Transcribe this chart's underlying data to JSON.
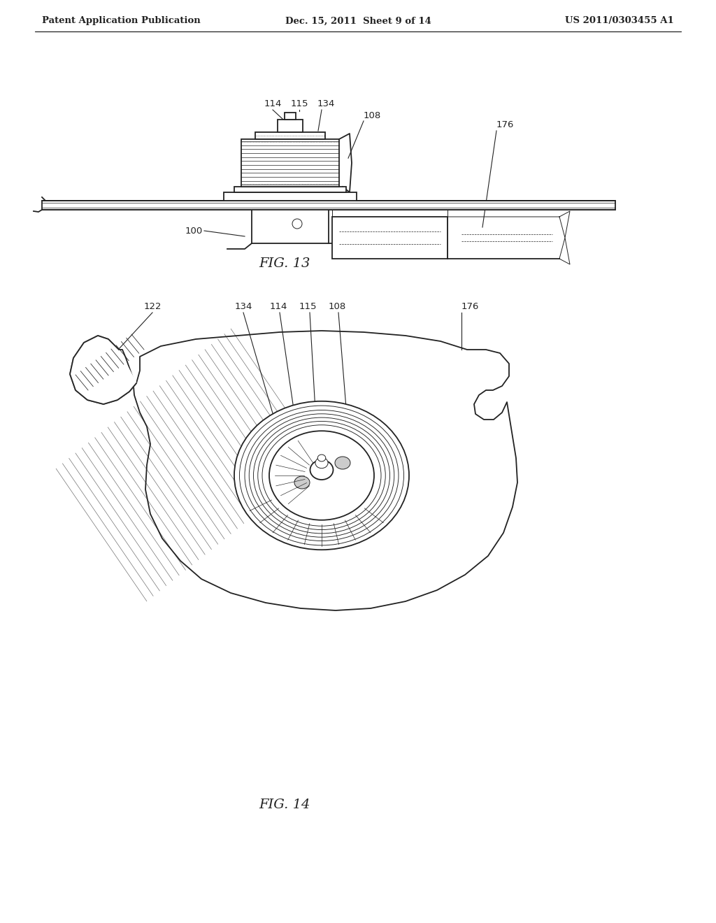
{
  "bg_color": "#ffffff",
  "line_color": "#222222",
  "header_left": "Patent Application Publication",
  "header_center": "Dec. 15, 2011  Sheet 9 of 14",
  "header_right": "US 2011/0303455 A1",
  "fig13_label": "FIG. 13",
  "fig14_label": "FIG. 14",
  "lw_main": 1.3,
  "lw_thin": 0.7,
  "lw_hair": 0.5
}
